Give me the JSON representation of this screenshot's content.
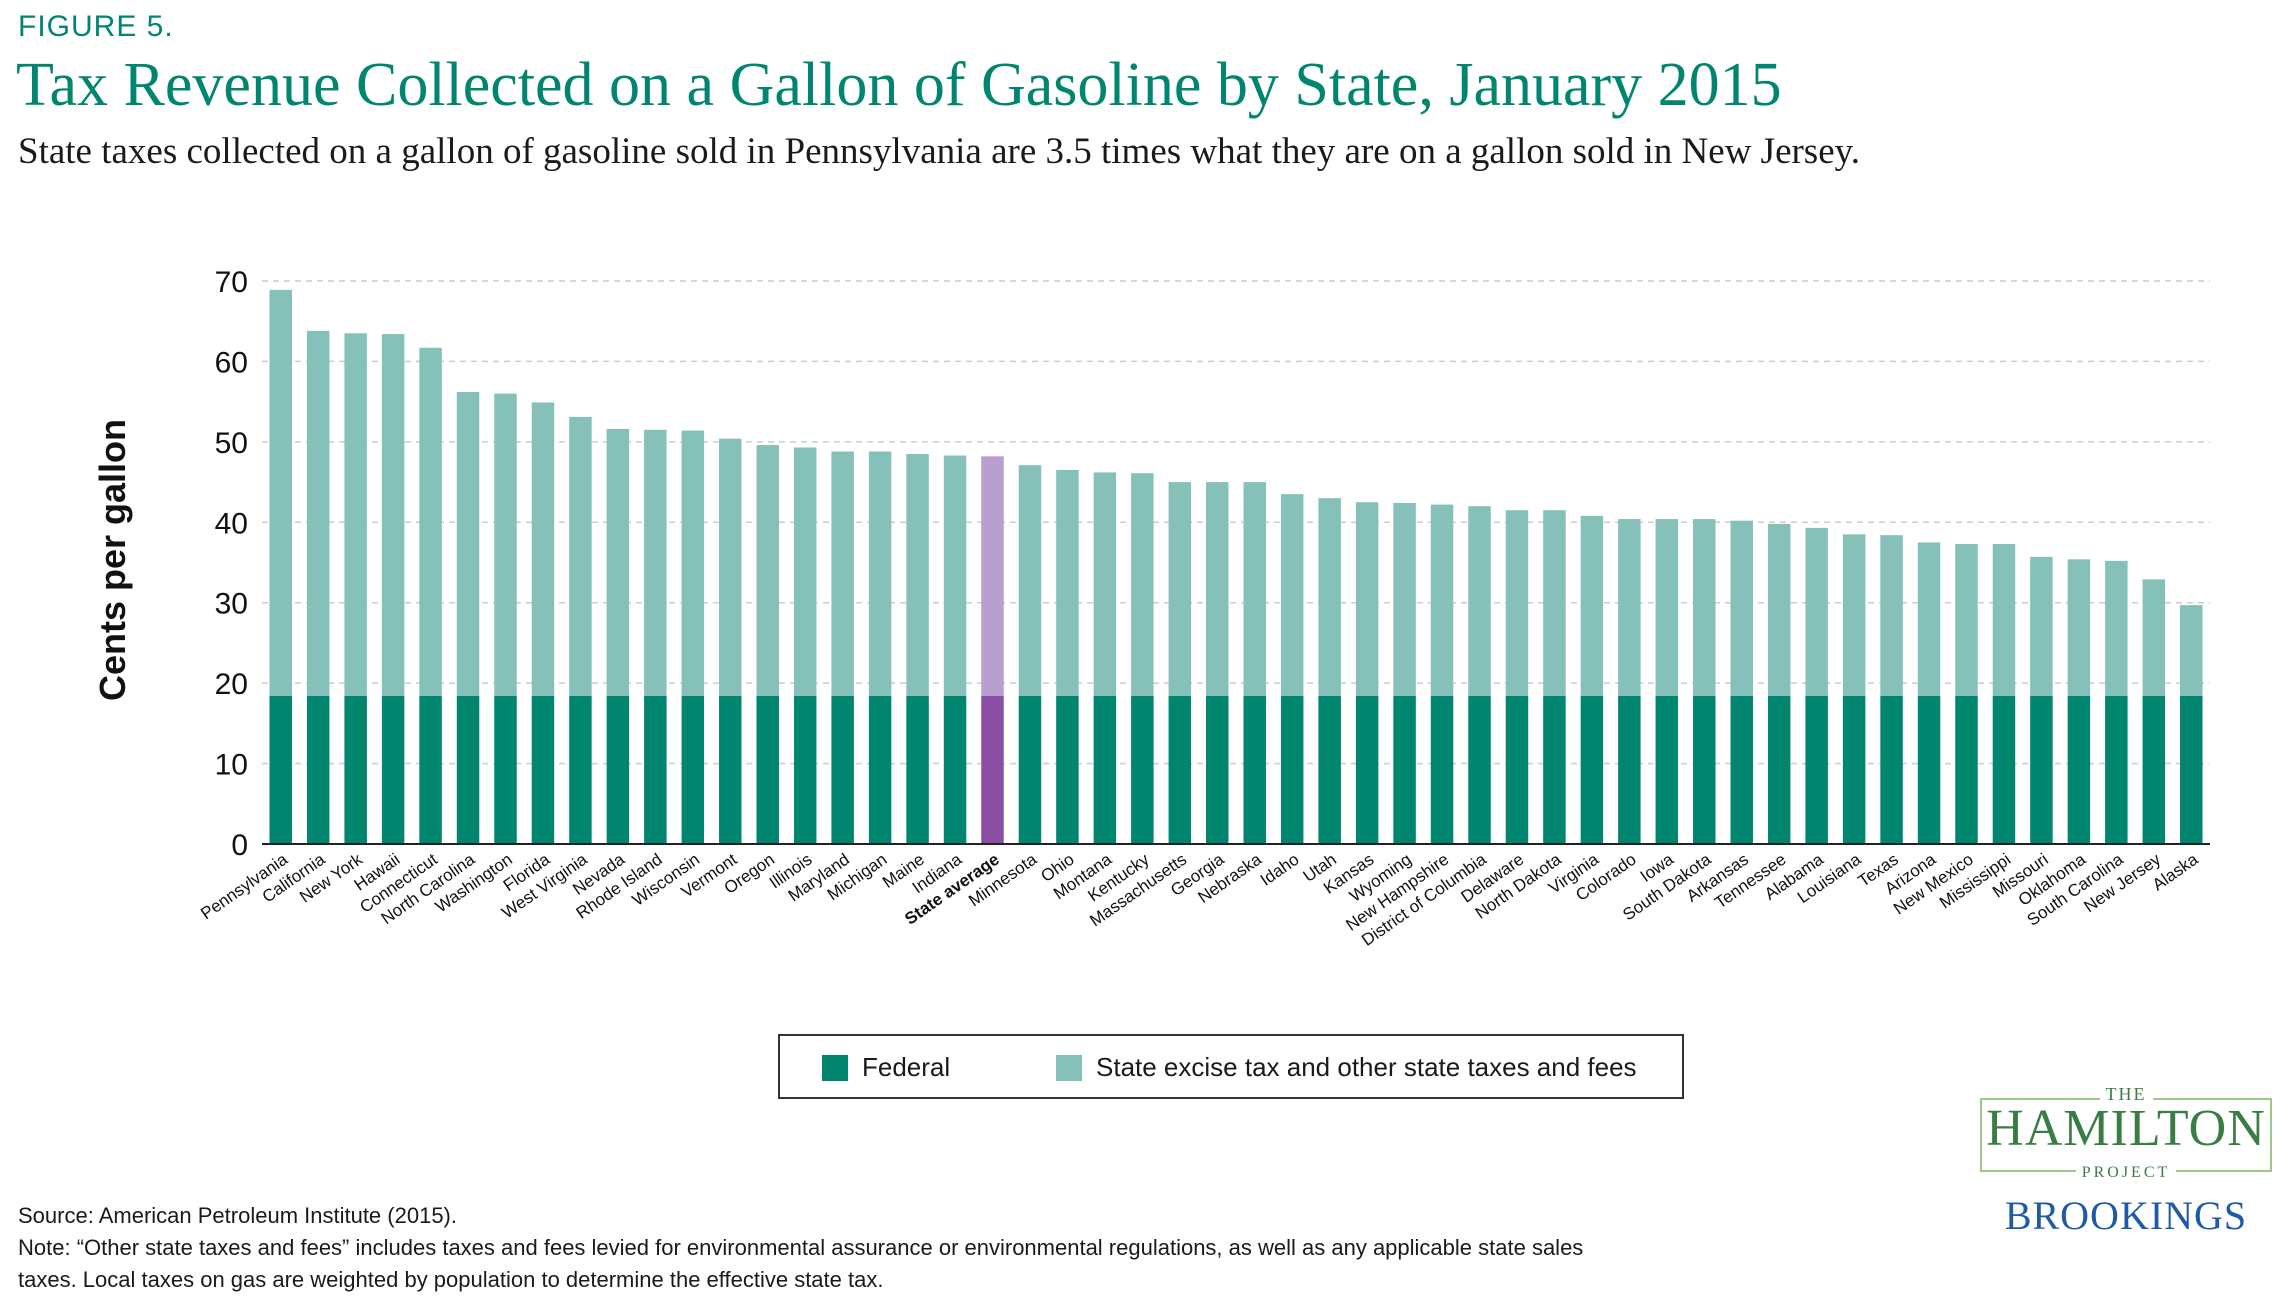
{
  "figure_label": "FIGURE 5.",
  "title": "Tax Revenue Collected on a Gallon of Gasoline by State, January 2015",
  "subtitle": "State taxes collected on a gallon of gasoline sold in Pennsylvania are 3.5 times what they are on a gallon sold in New Jersey.",
  "colors": {
    "federal": "#00856f",
    "state": "#85c1b8",
    "avg_federal": "#8a4fa3",
    "avg_state": "#b99ed0",
    "grid": "#cccccc",
    "title": "#00856f"
  },
  "chart_data": {
    "type": "bar",
    "stacked": true,
    "ylabel": "Cents per gallon",
    "ylim": [
      0,
      70
    ],
    "yticks": [
      0,
      10,
      20,
      30,
      40,
      50,
      60,
      70
    ],
    "grid": "horizontal dashed",
    "highlight_category": "State average",
    "categories": [
      "Pennsylvania",
      "California",
      "New York",
      "Hawaii",
      "Connecticut",
      "North Carolina",
      "Washington",
      "Florida",
      "West Virginia",
      "Nevada",
      "Rhode Island",
      "Wisconsin",
      "Vermont",
      "Oregon",
      "Illinois",
      "Maryland",
      "Michigan",
      "Maine",
      "Indiana",
      "State average",
      "Minnesota",
      "Ohio",
      "Montana",
      "Kentucky",
      "Massachusetts",
      "Georgia",
      "Nebraska",
      "Idaho",
      "Utah",
      "Kansas",
      "Wyoming",
      "New Hampshire",
      "District of Columbia",
      "Delaware",
      "North Dakota",
      "Virginia",
      "Colorado",
      "Iowa",
      "South Dakota",
      "Arkansas",
      "Tennessee",
      "Alabama",
      "Louisiana",
      "Texas",
      "Arizona",
      "New Mexico",
      "Mississippi",
      "Missouri",
      "Oklahoma",
      "South Carolina",
      "New Jersey",
      "Alaska"
    ],
    "series": [
      {
        "name": "Federal",
        "values": [
          18.4,
          18.4,
          18.4,
          18.4,
          18.4,
          18.4,
          18.4,
          18.4,
          18.4,
          18.4,
          18.4,
          18.4,
          18.4,
          18.4,
          18.4,
          18.4,
          18.4,
          18.4,
          18.4,
          18.4,
          18.4,
          18.4,
          18.4,
          18.4,
          18.4,
          18.4,
          18.4,
          18.4,
          18.4,
          18.4,
          18.4,
          18.4,
          18.4,
          18.4,
          18.4,
          18.4,
          18.4,
          18.4,
          18.4,
          18.4,
          18.4,
          18.4,
          18.4,
          18.4,
          18.4,
          18.4,
          18.4,
          18.4,
          18.4,
          18.4,
          18.4,
          18.4
        ]
      },
      {
        "name": "State excise tax and other state taxes and fees",
        "values": [
          50.5,
          45.4,
          45.1,
          45.0,
          43.3,
          37.8,
          37.6,
          36.5,
          34.7,
          33.2,
          33.1,
          33.0,
          32.0,
          31.2,
          30.9,
          30.4,
          30.4,
          30.1,
          29.9,
          29.8,
          28.7,
          28.1,
          27.8,
          27.7,
          26.6,
          26.6,
          26.6,
          25.1,
          24.6,
          24.1,
          24.0,
          23.8,
          23.6,
          23.1,
          23.1,
          22.4,
          22.0,
          22.0,
          22.0,
          21.8,
          21.4,
          20.9,
          20.1,
          20.0,
          19.1,
          18.9,
          18.9,
          17.3,
          17.0,
          16.8,
          14.5,
          11.3
        ]
      }
    ]
  },
  "legend": {
    "federal": "Federal",
    "state": "State excise tax and other state taxes and fees"
  },
  "source": "Source: American Petroleum Institute (2015).",
  "note_line1": "Note: “Other state taxes and fees” includes taxes and fees levied for environmental assurance or environmental regulations, as well as any applicable state sales",
  "note_line2": "taxes. Local taxes on gas are weighted by population to determine the effective state tax.",
  "logo": {
    "the": "THE",
    "hamilton": "HAMILTON",
    "project": "PROJECT",
    "brookings": "BROOKINGS"
  }
}
